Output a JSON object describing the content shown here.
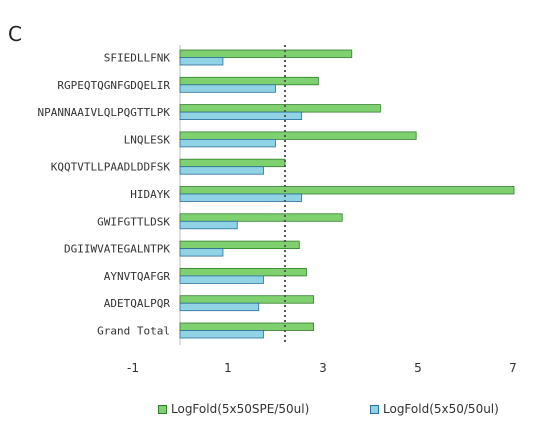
{
  "panel_letter": "C",
  "colors": {
    "series1_fill": "#7fd06f",
    "series1_stroke": "#2f7d2a",
    "series2_fill": "#8fd3e4",
    "series2_stroke": "#2b6f9e",
    "reference_line": "#555555"
  },
  "chart_data": {
    "type": "bar",
    "orientation": "horizontal",
    "categories": [
      "SFIEDLLFNK",
      "RGPEQTQGNFGDQELIR",
      "NPANNAAIVLQLPQGTTLPK",
      "LNQLESK",
      "KQQTVTLLPAADLDDFSK",
      "HIDAYK",
      "GWIFGTTLDSK",
      "DGIIWVATEGALNTPK",
      "AYNVTQAFGR",
      "ADETQALPQR",
      "Grand Total"
    ],
    "series": [
      {
        "name": "LogFold(5x50SPE/50ul)",
        "values": [
          3.6,
          2.9,
          4.2,
          4.95,
          2.2,
          7.0,
          3.4,
          2.5,
          2.65,
          2.8,
          2.8
        ]
      },
      {
        "name": "LogFold(5x50/50ul)",
        "values": [
          0.9,
          2.0,
          2.55,
          2.0,
          1.75,
          2.55,
          1.2,
          0.9,
          1.75,
          1.65,
          1.75
        ]
      }
    ],
    "reference_line": 2.2,
    "xlim": [
      -1,
      7
    ],
    "xticks": [
      "-1",
      "1",
      "3",
      "5",
      "7"
    ],
    "xtick_values": [
      -1,
      1,
      3,
      5,
      7
    ],
    "legend_position": "bottom",
    "grid": false
  }
}
